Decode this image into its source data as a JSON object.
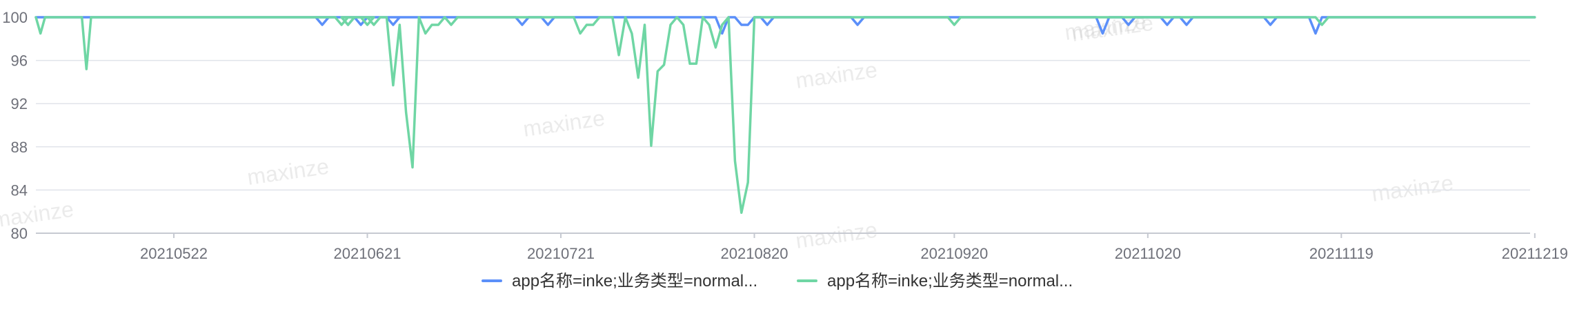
{
  "watermark_text": "maxinze",
  "colors": {
    "series_1": "#5b8ff9",
    "series_2": "#6fd6a4",
    "grid": "#e0e3ea",
    "axis": "#c6c9d1"
  },
  "chart_data": {
    "type": "line",
    "title": "",
    "xlabel": "",
    "ylabel": "",
    "ylim": [
      80,
      100
    ],
    "yticks": [
      80,
      84,
      88,
      92,
      96,
      100
    ],
    "y_tick_labels": [
      "80",
      "84",
      "88",
      "92",
      "96",
      "100"
    ],
    "xlim": [
      "20210422",
      "20211219"
    ],
    "xticks": [
      "20210522",
      "20210621",
      "20210721",
      "20210820",
      "20210920",
      "20211020",
      "20211119",
      "20211219"
    ],
    "x_tick_labels": [
      "20210522",
      "20210621",
      "20210721",
      "20210820",
      "20210920",
      "20211020",
      "20211119",
      "20211219"
    ],
    "grid": "horizontal",
    "legend_position": "bottom-center",
    "series": [
      {
        "name": "app名称=inke;业务类型=normal...",
        "points": [
          [
            "20210422",
            100
          ],
          [
            "20210522",
            100
          ],
          [
            "20210548",
            100
          ],
          [
            "20210549",
            99.3
          ],
          [
            "20210550",
            100
          ],
          [
            "20210555",
            100
          ],
          [
            "20210556",
            99.3
          ],
          [
            "20210557",
            100
          ],
          [
            "20210613",
            100
          ],
          [
            "20210614",
            99.3
          ],
          [
            "20210615",
            100
          ],
          [
            "20210619",
            100
          ],
          [
            "20210620",
            99.3
          ],
          [
            "20210621",
            100
          ],
          [
            "20210714",
            100
          ],
          [
            "20210715",
            99.3
          ],
          [
            "20210716",
            100
          ],
          [
            "20210718",
            100
          ],
          [
            "20210719",
            99.3
          ],
          [
            "20210720",
            100
          ],
          [
            "20210814",
            100
          ],
          [
            "20210815",
            98.5
          ],
          [
            "20210816",
            100
          ],
          [
            "20210817",
            100
          ],
          [
            "20210818",
            99.3
          ],
          [
            "20210819",
            99.3
          ],
          [
            "20210820",
            100
          ],
          [
            "20210821",
            100
          ],
          [
            "20210822",
            99.3
          ],
          [
            "20210823",
            100
          ],
          [
            "20210904",
            100
          ],
          [
            "20210905",
            99.3
          ],
          [
            "20210906",
            100
          ],
          [
            "20211012",
            100
          ],
          [
            "20211013",
            98.5
          ],
          [
            "20211014",
            100
          ],
          [
            "20211016",
            100
          ],
          [
            "20211017",
            99.3
          ],
          [
            "20211018",
            100
          ],
          [
            "20211022",
            100
          ],
          [
            "20211023",
            99.3
          ],
          [
            "20211024",
            100
          ],
          [
            "20211025",
            100
          ],
          [
            "20211026",
            99.3
          ],
          [
            "20211027",
            100
          ],
          [
            "20211107",
            100
          ],
          [
            "20211108",
            99.3
          ],
          [
            "20211109",
            100
          ],
          [
            "20211114",
            100
          ],
          [
            "20211115",
            98.5
          ],
          [
            "20211116",
            100
          ],
          [
            "20211219",
            100
          ]
        ]
      },
      {
        "name": "app名称=inke;业务类型=normal...",
        "points": [
          [
            "20210422",
            100
          ],
          [
            "20210423",
            98.5
          ],
          [
            "20210424",
            100
          ],
          [
            "20210432",
            100
          ],
          [
            "20210433",
            95.2
          ],
          [
            "20210434",
            100
          ],
          [
            "20210547",
            100
          ],
          [
            "20210548",
            99.3
          ],
          [
            "20210549",
            100
          ],
          [
            "20210551",
            100
          ],
          [
            "20210552",
            99.3
          ],
          [
            "20210553",
            100
          ],
          [
            "20210617",
            100
          ],
          [
            "20210618",
            99.3
          ],
          [
            "20210619",
            100
          ],
          [
            "20210621",
            100
          ],
          [
            "20210622",
            99.3
          ],
          [
            "20210623",
            100
          ],
          [
            "20210624",
            100
          ],
          [
            "20210625",
            93.7
          ],
          [
            "20210626",
            99.3
          ],
          [
            "20210627",
            91.2
          ],
          [
            "20210628",
            86.1
          ],
          [
            "20210629",
            100
          ],
          [
            "20210630",
            98.5
          ],
          [
            "20210631",
            99.3
          ],
          [
            "20210632",
            99.3
          ],
          [
            "20210633",
            100
          ],
          [
            "20210634",
            99.3
          ],
          [
            "20210635",
            100
          ],
          [
            "20210723",
            100
          ],
          [
            "20210724",
            98.5
          ],
          [
            "20210725",
            99.3
          ],
          [
            "20210726",
            99.3
          ],
          [
            "20210727",
            100
          ],
          [
            "20210729",
            100
          ],
          [
            "20210730",
            96.5
          ],
          [
            "20210731",
            100
          ],
          [
            "20210732",
            98.5
          ],
          [
            "20210733",
            94.4
          ],
          [
            "20210734",
            99.3
          ],
          [
            "20210735",
            88.1
          ],
          [
            "20210736",
            95.0
          ],
          [
            "20210737",
            95.6
          ],
          [
            "20210738",
            99.3
          ],
          [
            "20210739",
            100
          ],
          [
            "20210740",
            99.3
          ],
          [
            "20210741",
            95.7
          ],
          [
            "20210742",
            95.7
          ],
          [
            "20210743",
            100
          ],
          [
            "20210744",
            99.3
          ],
          [
            "20210745",
            97.2
          ],
          [
            "20210746",
            99.3
          ],
          [
            "20210747",
            100
          ],
          [
            "20210748",
            86.7
          ],
          [
            "20210749",
            81.9
          ],
          [
            "20210750",
            84.7
          ],
          [
            "20210751",
            100
          ],
          [
            "20210919",
            100
          ],
          [
            "20210920",
            99.3
          ],
          [
            "20210921",
            100
          ],
          [
            "20211115",
            100
          ],
          [
            "20211116",
            99.3
          ],
          [
            "20211117",
            100
          ],
          [
            "20211219",
            100
          ]
        ]
      }
    ]
  }
}
